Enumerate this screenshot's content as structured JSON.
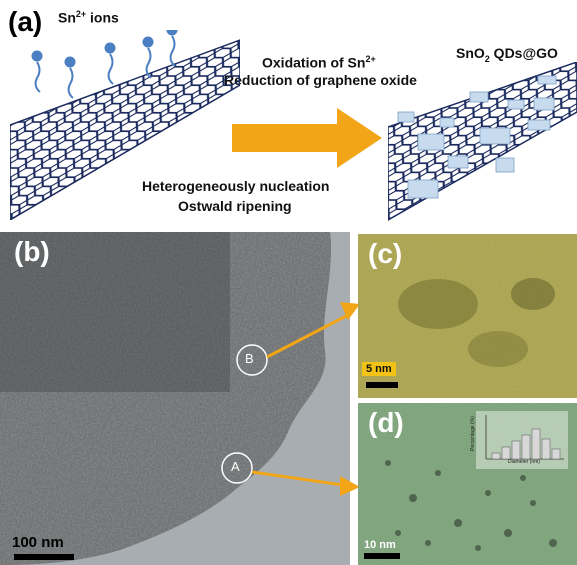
{
  "panel_a": {
    "label": "(a)",
    "ions_label": "Sn",
    "ions_sup": "2+",
    "ions_suffix": " ions",
    "line1_prefix": "Oxidation of Sn",
    "line1_sup": "2+",
    "line2": "Reduction of graphene oxide",
    "line3": "Heterogeneously nucleation",
    "line4": "Ostwald ripening",
    "product_prefix": "SnO",
    "product_sub": "2",
    "product_suffix": " QDs@GO"
  },
  "panel_b": {
    "label": "(b)",
    "circle_b": "B",
    "circle_a": "A",
    "scale": "100 nm"
  },
  "panel_c": {
    "label": "(c)",
    "scale": "5 nm"
  },
  "panel_d": {
    "label": "(d)",
    "scale": "10 nm",
    "inset": {
      "ylabel": "Percentage (%)",
      "xlabel": "Diameter (nm)",
      "bars": [
        0.15,
        0.3,
        0.45,
        0.6,
        0.75,
        0.5,
        0.25
      ]
    }
  },
  "colors": {
    "arrow": "#f2a516",
    "graphene": "#1b2a5e",
    "ion": "#4a7fc1"
  }
}
